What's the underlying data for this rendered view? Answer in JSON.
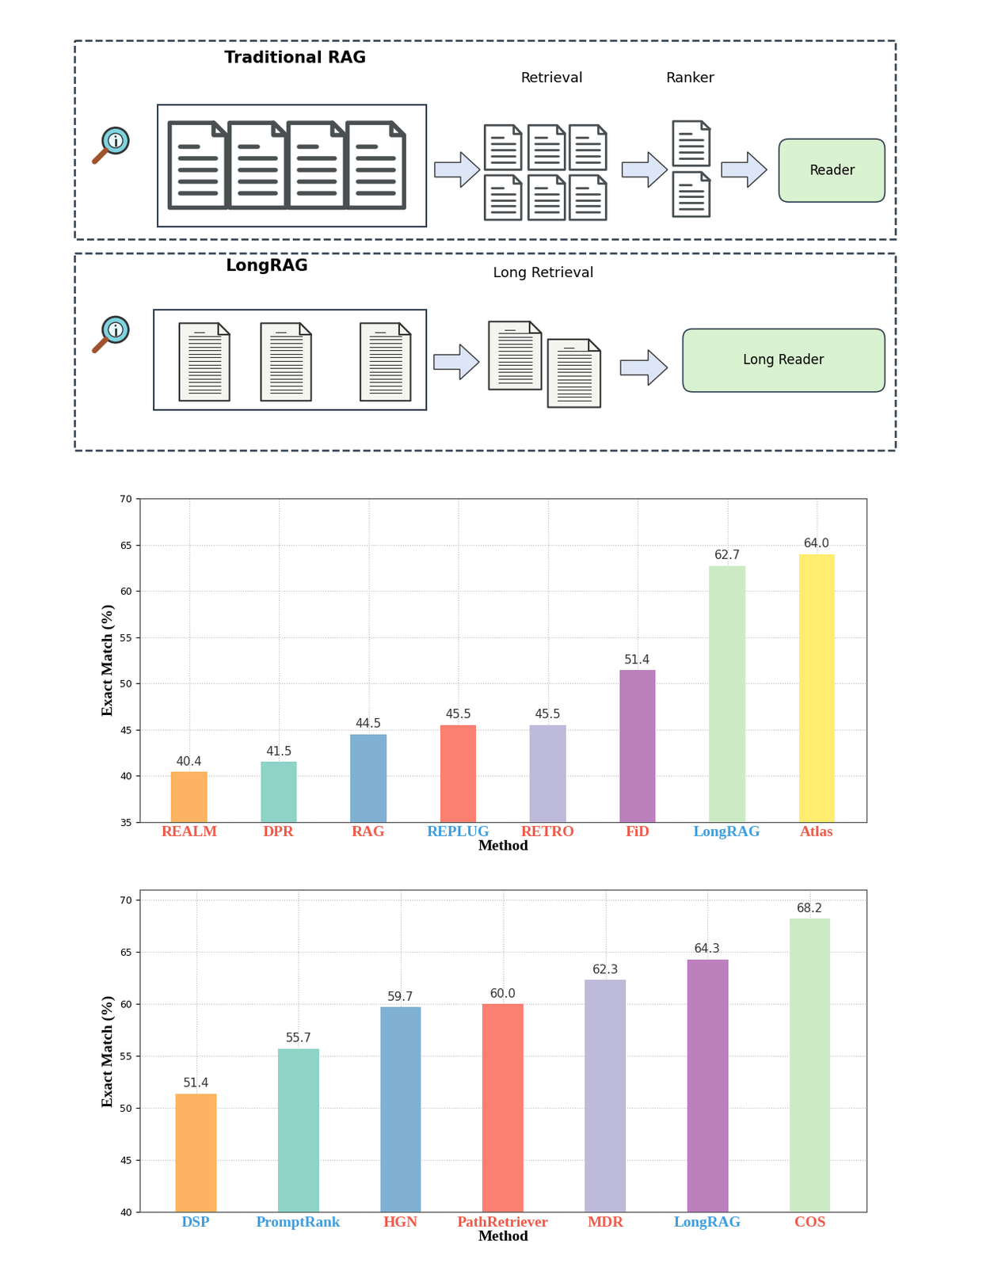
{
  "diagram": {
    "panels": [
      {
        "title": "Traditional RAG",
        "stages": [
          "Retrieval",
          "Ranker"
        ],
        "reader": "Reader"
      },
      {
        "title": "LongRAG",
        "stages": [
          "Long Retrieval"
        ],
        "reader": "Long Reader"
      }
    ]
  },
  "chart_data": [
    {
      "type": "bar",
      "x_label": "Method",
      "y_label": "Exact Match (%)",
      "categories": [
        "REALM",
        "DPR",
        "RAG",
        "REPLUG",
        "RETRO",
        "FiD",
        "LongRAG",
        "Atlas"
      ],
      "values": [
        40.4,
        41.5,
        44.5,
        45.5,
        45.5,
        51.4,
        62.7,
        64.0
      ],
      "value_labels": [
        "40.4",
        "41.5",
        "44.5",
        "45.5",
        "45.5",
        "51.4",
        "62.7",
        "64.0"
      ],
      "colors": [
        "#fdb462",
        "#8dd3c7",
        "#80b1d3",
        "#fb8072",
        "#bebada",
        "#bc80bd",
        "#ccebc5",
        "#ffed6f"
      ],
      "ylim": [
        35,
        70
      ],
      "yticks": [
        35,
        40,
        45,
        50,
        55,
        60,
        65,
        70
      ],
      "grid": true,
      "data_labels": true
    },
    {
      "type": "bar",
      "x_label": "Method",
      "y_label": "Exact Match (%)",
      "categories": [
        "DSP",
        "PromptRank",
        "HGN",
        "PathRetriever",
        "MDR",
        "LongRAG",
        "COS"
      ],
      "values": [
        51.4,
        55.7,
        59.7,
        60.0,
        62.3,
        64.3,
        68.2
      ],
      "value_labels": [
        "51.4",
        "55.7",
        "59.7",
        "60.0",
        "62.3",
        "64.3",
        "68.2"
      ],
      "colors": [
        "#fdb462",
        "#8dd3c7",
        "#80b1d3",
        "#fb8072",
        "#bebada",
        "#bc80bd",
        "#ccebc5"
      ],
      "ylim": [
        40,
        71
      ],
      "yticks": [
        40,
        45,
        50,
        55,
        60,
        65,
        70
      ],
      "grid": true,
      "data_labels": true
    }
  ]
}
